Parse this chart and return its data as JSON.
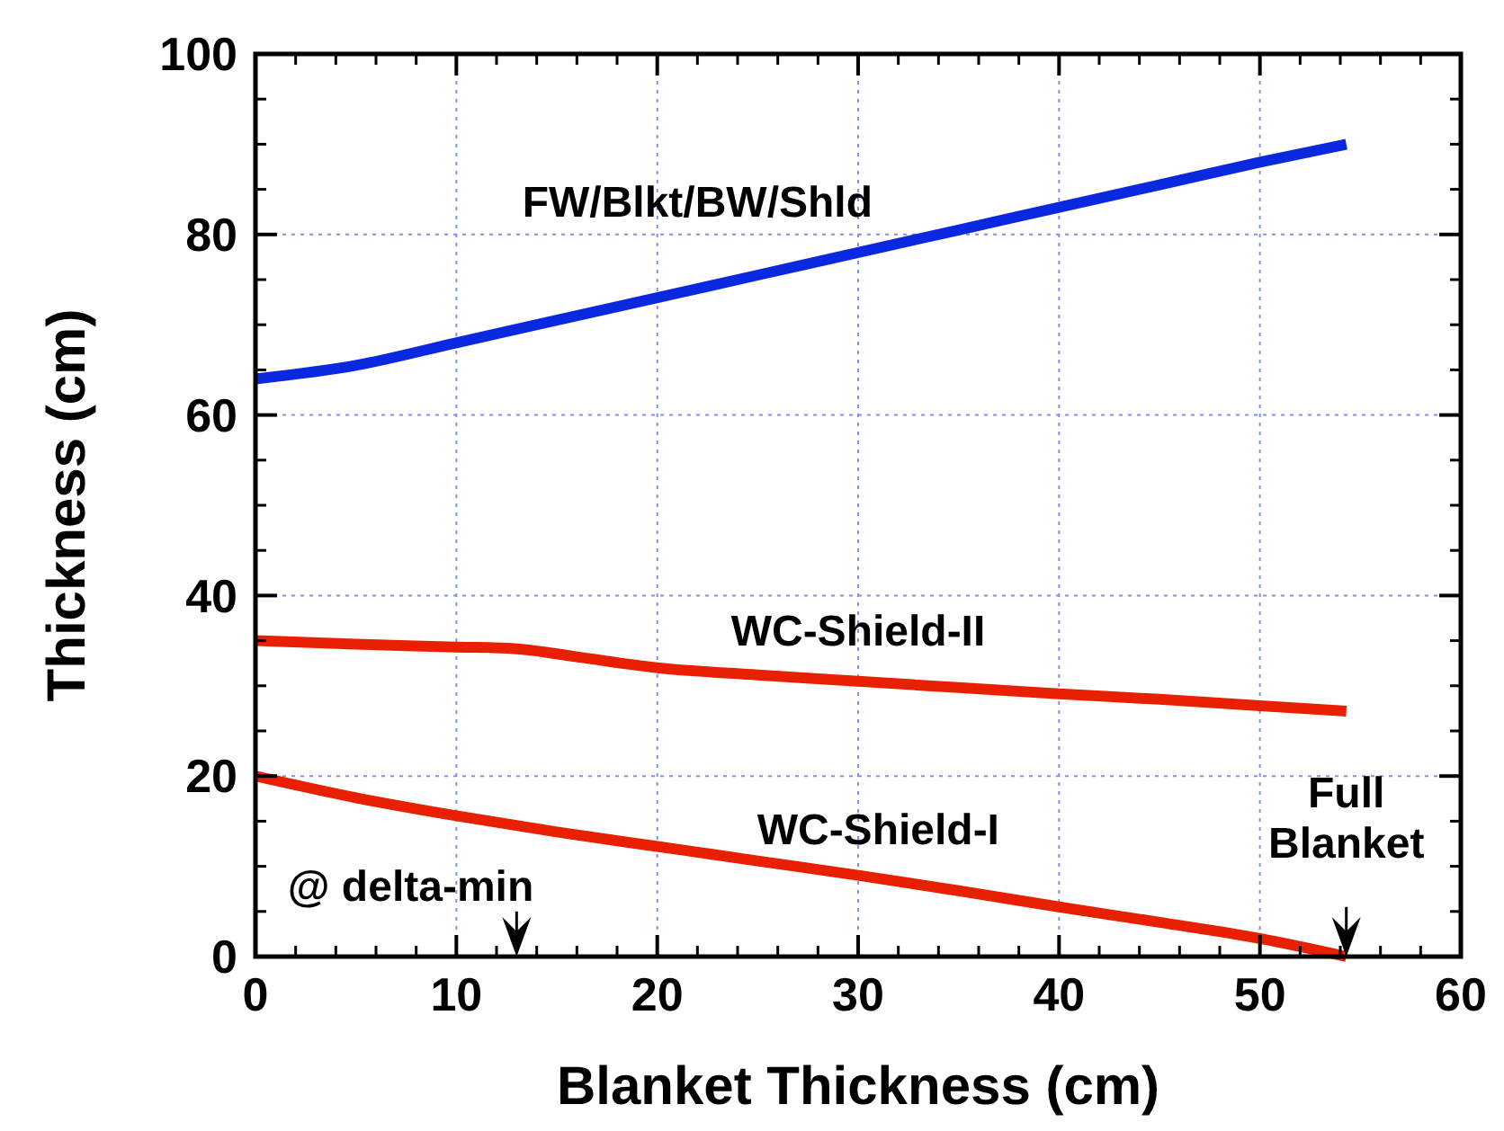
{
  "chart_data": {
    "type": "line",
    "xlabel": "Blanket Thickness (cm)",
    "ylabel": "Thickness (cm)",
    "xlim": [
      0,
      60
    ],
    "xticks": [
      0,
      10,
      20,
      30,
      40,
      50,
      60
    ],
    "ylim": [
      0,
      100
    ],
    "yticks": [
      0,
      20,
      40,
      60,
      80,
      100
    ],
    "grid": true,
    "marker": "none",
    "line_style": "solid",
    "series": [
      {
        "name": "FW/Blkt/BW/Shld",
        "color": "#0a28e0",
        "x": [
          0,
          5,
          10,
          15,
          20,
          25,
          30,
          35,
          40,
          45,
          50,
          54.3
        ],
        "values": [
          64,
          65.5,
          68,
          70.5,
          73,
          75.5,
          78,
          80.5,
          83,
          85.5,
          88,
          90
        ]
      },
      {
        "name": "WC-Shield-II",
        "color": "#e82000",
        "x": [
          0,
          5,
          10,
          13,
          16,
          20,
          25,
          30,
          35,
          40,
          45,
          50,
          54.3
        ],
        "values": [
          35,
          34.6,
          34.3,
          34.1,
          33.2,
          32,
          31.2,
          30.5,
          29.8,
          29.1,
          28.5,
          27.8,
          27.2
        ]
      },
      {
        "name": "WC-Shield-I",
        "color": "#e82000",
        "x": [
          0,
          5,
          10,
          15,
          20,
          25,
          30,
          35,
          40,
          45,
          50,
          54.3
        ],
        "values": [
          20,
          17.6,
          15.6,
          13.8,
          12.2,
          10.6,
          9,
          7.3,
          5.5,
          3.8,
          2,
          0
        ]
      }
    ],
    "annotations": [
      "@ delta-min",
      {
        "text": "Full\nBlanket",
        "x": 54.3,
        "y": 0
      }
    ]
  }
}
